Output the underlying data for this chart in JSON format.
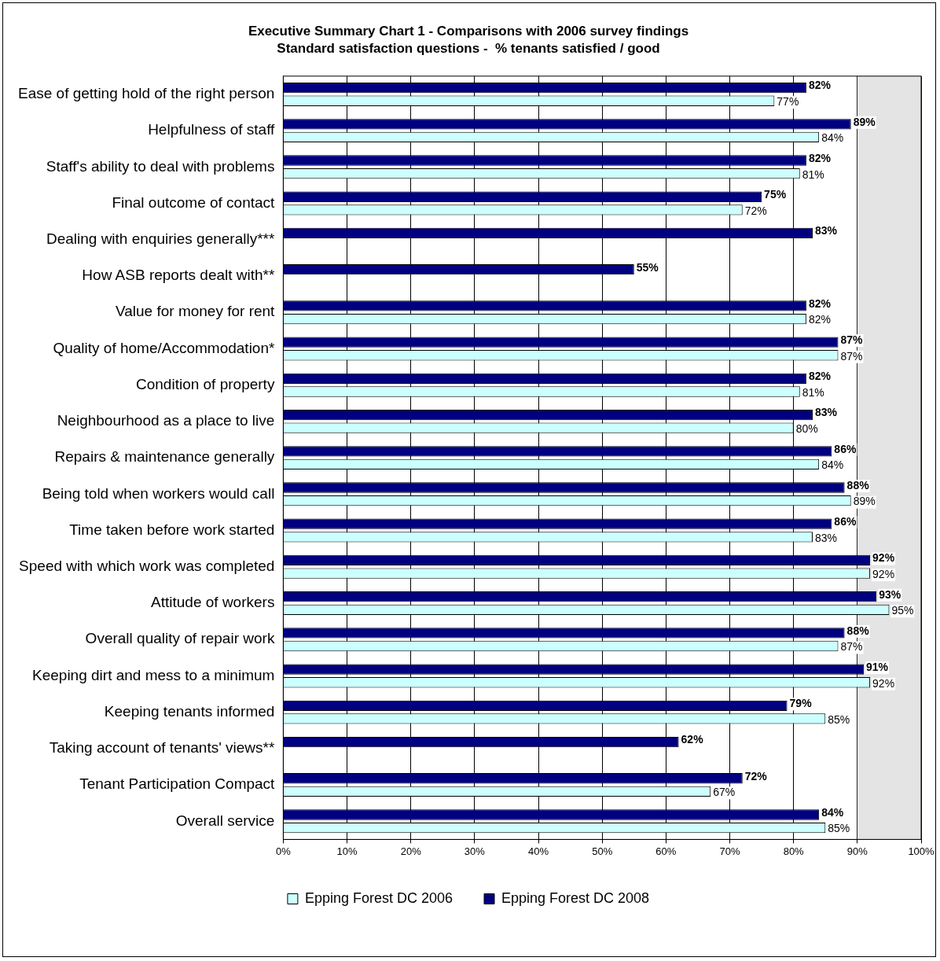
{
  "chart_data": {
    "type": "bar",
    "orientation": "horizontal",
    "title": "Executive Summary Chart 1 - Comparisons with 2006 survey findings",
    "subtitle": "Standard satisfaction questions -  % tenants satisfied / good",
    "categories": [
      "Ease of getting hold of the right person",
      "Helpfulness of staff",
      "Staff's ability to deal with problems",
      "Final outcome of contact",
      "Dealing with enquiries generally***",
      "How ASB reports dealt with**",
      "Value for money for rent",
      "Quality of home/Accommodation*",
      "Condition of property",
      "Neighbourhood as a place to live",
      "Repairs & maintenance generally",
      "Being told when workers would call",
      "Time taken before work started",
      "Speed with which work was completed",
      "Attitude of workers",
      "Overall quality of repair work",
      "Keeping dirt and mess to a minimum",
      "Keeping tenants informed",
      "Taking account of tenants' views**",
      "Tenant Participation Compact",
      "Overall service"
    ],
    "series": [
      {
        "name": "Epping Forest DC 2006",
        "color": "#ccffff",
        "values": [
          77,
          84,
          81,
          72,
          null,
          null,
          82,
          87,
          81,
          80,
          84,
          89,
          83,
          92,
          95,
          87,
          92,
          85,
          null,
          67,
          85
        ],
        "value_labels": [
          "77%",
          "84%",
          "81%",
          "72%",
          null,
          null,
          "82%",
          "87%",
          "81%",
          "80%",
          "84%",
          "89%",
          "83%",
          "92%",
          "95%",
          "87%",
          "92%",
          "85%",
          null,
          "67%",
          "85%"
        ]
      },
      {
        "name": "Epping Forest DC 2008",
        "color": "#000080",
        "values": [
          82,
          89,
          82,
          75,
          83,
          55,
          82,
          87,
          82,
          83,
          86,
          88,
          86,
          92,
          93,
          88,
          91,
          79,
          62,
          72,
          84
        ],
        "value_labels": [
          "82%",
          "89%",
          "82%",
          "75%",
          "83%",
          "55%",
          "82%",
          "87%",
          "82%",
          "83%",
          "86%",
          "88%",
          "86%",
          "92%",
          "93%",
          "88%",
          "91%",
          "79%",
          "62%",
          "72%",
          "84%"
        ]
      }
    ],
    "xlim": [
      0,
      100
    ],
    "xticks": [
      {
        "value": 0,
        "label": "0%"
      },
      {
        "value": 10,
        "label": "10%"
      },
      {
        "value": 20,
        "label": "20%"
      },
      {
        "value": 30,
        "label": "30%"
      },
      {
        "value": 40,
        "label": "40%"
      },
      {
        "value": 50,
        "label": "50%"
      },
      {
        "value": 60,
        "label": "60%"
      },
      {
        "value": 70,
        "label": "70%"
      },
      {
        "value": 80,
        "label": "80%"
      },
      {
        "value": 90,
        "label": "90%"
      },
      {
        "value": 100,
        "label": "100%"
      }
    ],
    "bands": [
      {
        "axis": "x",
        "from": 90,
        "to": 100,
        "color": "#e4e4e4"
      }
    ],
    "grid": "x",
    "legend": "bottom"
  }
}
